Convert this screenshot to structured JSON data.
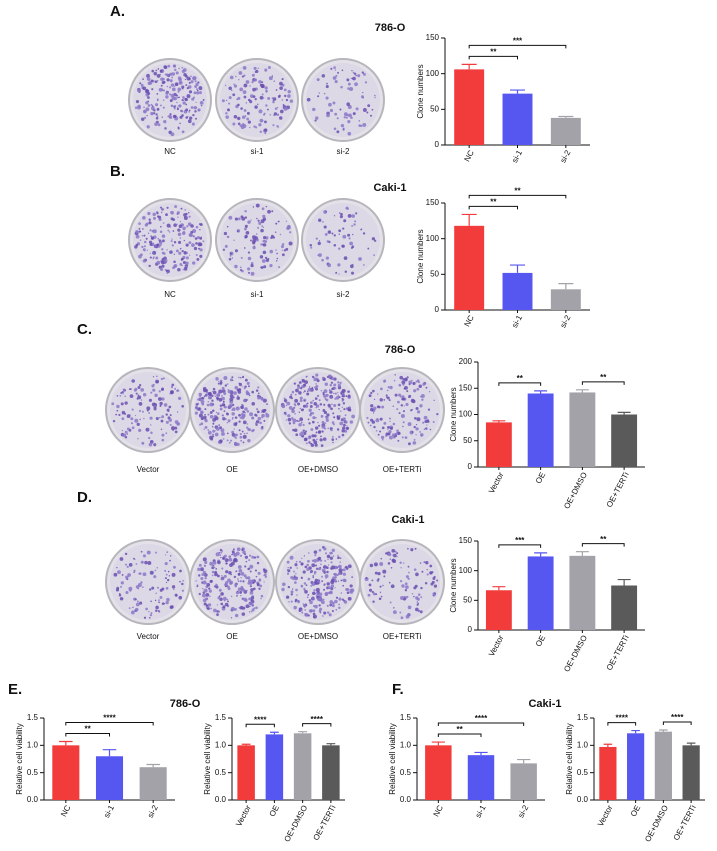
{
  "panels": [
    {
      "letter": "A.",
      "cell_line": "786-O",
      "dish_labels": [
        "NC",
        "si-1",
        "si-2"
      ]
    },
    {
      "letter": "B.",
      "cell_line": "Caki-1",
      "dish_labels": [
        "NC",
        "si-1",
        "si-2"
      ]
    },
    {
      "letter": "C.",
      "cell_line": "786-O",
      "dish_labels": [
        "Vector",
        "OE",
        "OE+DMSO",
        "OE+TERTi"
      ]
    },
    {
      "letter": "D.",
      "cell_line": "Caki-1",
      "dish_labels": [
        "Vector",
        "OE",
        "OE+DMSO",
        "OE+TERTi"
      ]
    },
    {
      "letter": "E.",
      "cell_line": "786-O"
    },
    {
      "letter": "F.",
      "cell_line": "Caki-1"
    }
  ],
  "chart_data": [
    {
      "type": "bar",
      "y_label": "Clone numbers",
      "categories": [
        "NC",
        "si-1",
        "si-2"
      ],
      "values": [
        106,
        72,
        38
      ],
      "errors": [
        7,
        5,
        2
      ],
      "colors": [
        "#f23c3c",
        "#5656f0",
        "#a2a2a8"
      ],
      "ylim": [
        0,
        150
      ],
      "yticks": [
        0,
        50,
        100,
        150
      ],
      "significance": [
        {
          "label": "**",
          "between": [
            0,
            1
          ]
        },
        {
          "label": "***",
          "between": [
            0,
            2
          ]
        }
      ]
    },
    {
      "type": "bar",
      "y_label": "Clone numbers",
      "categories": [
        "NC",
        "si-1",
        "si-2"
      ],
      "values": [
        118,
        52,
        29
      ],
      "errors": [
        16,
        11,
        8
      ],
      "colors": [
        "#f23c3c",
        "#5656f0",
        "#a2a2a8"
      ],
      "ylim": [
        0,
        150
      ],
      "yticks": [
        0,
        50,
        100,
        150
      ],
      "significance": [
        {
          "label": "**",
          "between": [
            0,
            1
          ]
        },
        {
          "label": "**",
          "between": [
            0,
            2
          ]
        }
      ]
    },
    {
      "type": "bar",
      "y_label": "Clone numbers",
      "categories": [
        "Vector",
        "OE",
        "OE+DMSO",
        "OE+TERTi"
      ],
      "values": [
        85,
        140,
        142,
        100
      ],
      "errors": [
        3,
        5,
        5,
        4
      ],
      "colors": [
        "#f23c3c",
        "#5656f0",
        "#a2a2a8",
        "#5a5a5a"
      ],
      "ylim": [
        0,
        200
      ],
      "yticks": [
        0,
        50,
        100,
        150,
        200
      ],
      "significance": [
        {
          "label": "**",
          "between": [
            0,
            1
          ]
        },
        {
          "label": "**",
          "between": [
            2,
            3
          ]
        }
      ]
    },
    {
      "type": "bar",
      "y_label": "Clone numbers",
      "categories": [
        "Vector",
        "OE",
        "OE+DMSO",
        "OE+TERTi"
      ],
      "values": [
        67,
        124,
        125,
        75
      ],
      "errors": [
        6,
        6,
        7,
        10
      ],
      "colors": [
        "#f23c3c",
        "#5656f0",
        "#a2a2a8",
        "#5a5a5a"
      ],
      "ylim": [
        0,
        150
      ],
      "yticks": [
        0,
        50,
        100,
        150
      ],
      "significance": [
        {
          "label": "***",
          "between": [
            0,
            1
          ]
        },
        {
          "label": "**",
          "between": [
            2,
            3
          ]
        }
      ]
    },
    {
      "type": "bar",
      "y_label": "Relative cell viability",
      "categories": [
        "NC",
        "si-1",
        "si-2"
      ],
      "values": [
        1.0,
        0.8,
        0.6
      ],
      "errors": [
        0.07,
        0.12,
        0.05
      ],
      "colors": [
        "#f23c3c",
        "#5656f0",
        "#a2a2a8"
      ],
      "ylim": [
        0,
        1.5
      ],
      "yticks": [
        {
          "value": 0,
          "label": "0.0"
        },
        0.5,
        {
          "value": 1,
          "label": "1.0"
        },
        1.5
      ],
      "significance": [
        {
          "label": "**",
          "between": [
            0,
            1
          ]
        },
        {
          "label": "****",
          "between": [
            0,
            2
          ]
        }
      ]
    },
    {
      "type": "bar",
      "y_label": "Relative cell viability",
      "categories": [
        "Vector",
        "OE",
        "OE+DMSO",
        "OE+TERTi"
      ],
      "values": [
        1.0,
        1.2,
        1.22,
        1.0
      ],
      "errors": [
        0.02,
        0.04,
        0.03,
        0.03
      ],
      "colors": [
        "#f23c3c",
        "#5656f0",
        "#a2a2a8",
        "#5a5a5a"
      ],
      "ylim": [
        0,
        1.5
      ],
      "yticks": [
        {
          "value": 0,
          "label": "0.0"
        },
        0.5,
        {
          "value": 1,
          "label": "1.0"
        },
        1.5
      ],
      "significance": [
        {
          "label": "****",
          "between": [
            0,
            1
          ]
        },
        {
          "label": "****",
          "between": [
            2,
            3
          ]
        }
      ]
    },
    {
      "type": "bar",
      "y_label": "Relative cell viability",
      "categories": [
        "NC",
        "si-1",
        "si-2"
      ],
      "values": [
        1.0,
        0.82,
        0.67
      ],
      "errors": [
        0.06,
        0.05,
        0.07
      ],
      "colors": [
        "#f23c3c",
        "#5656f0",
        "#a2a2a8"
      ],
      "ylim": [
        0,
        1.5
      ],
      "yticks": [
        {
          "value": 0,
          "label": "0.0"
        },
        0.5,
        {
          "value": 1,
          "label": "1.0"
        },
        1.5
      ],
      "significance": [
        {
          "label": "**",
          "between": [
            0,
            1
          ]
        },
        {
          "label": "****",
          "between": [
            0,
            2
          ]
        }
      ]
    },
    {
      "type": "bar",
      "y_label": "Relative cell viability",
      "categories": [
        "Vector",
        "OE",
        "OE+DMSO",
        "OE+TERTi"
      ],
      "values": [
        0.97,
        1.22,
        1.25,
        1.0
      ],
      "errors": [
        0.05,
        0.05,
        0.03,
        0.04
      ],
      "colors": [
        "#f23c3c",
        "#5656f0",
        "#a2a2a8",
        "#5a5a5a"
      ],
      "ylim": [
        0,
        1.5
      ],
      "yticks": [
        {
          "value": 0,
          "label": "0.0"
        },
        0.5,
        {
          "value": 1,
          "label": "1.0"
        },
        1.5
      ],
      "significance": [
        {
          "label": "****",
          "between": [
            0,
            1
          ]
        },
        {
          "label": "****",
          "between": [
            2,
            3
          ]
        }
      ]
    }
  ]
}
